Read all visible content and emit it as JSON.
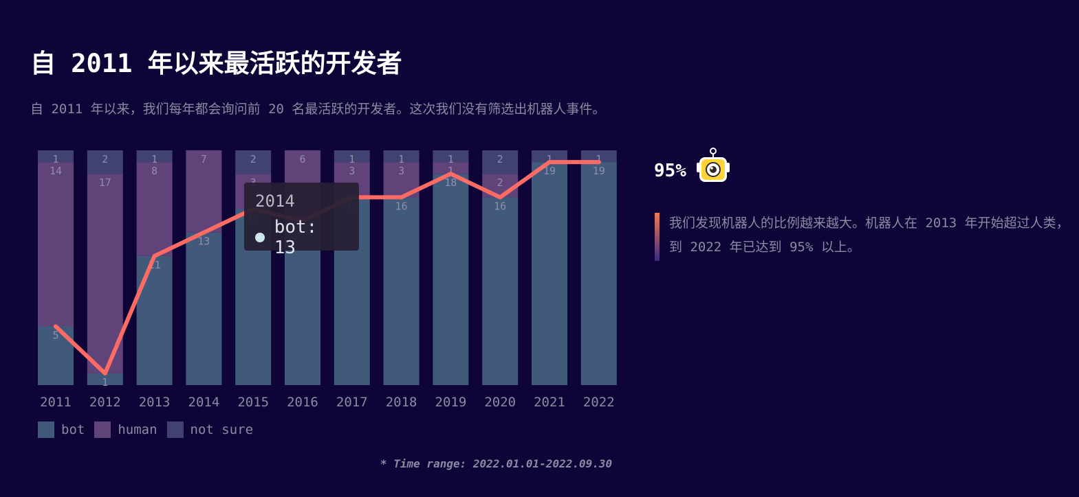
{
  "header": {
    "title": "自 2011 年以来最活跃的开发者",
    "subtitle": "自 2011 年以来，我们每年都会询问前 20 名最活跃的开发者。这次我们没有筛选出机器人事件。"
  },
  "colors": {
    "background": "#0e0437",
    "bot": "#415a7b",
    "human": "#5f4379",
    "not_sure": "#414172",
    "line": "#fd6b65",
    "label": "#8a8aa3"
  },
  "chart_data": {
    "type": "bar",
    "stacked": true,
    "categories": [
      "2011",
      "2012",
      "2013",
      "2014",
      "2015",
      "2016",
      "2017",
      "2018",
      "2019",
      "2020",
      "2021",
      "2022"
    ],
    "series": [
      {
        "name": "bot",
        "values": [
          5,
          1,
          11,
          13,
          15,
          14,
          16,
          16,
          18,
          16,
          19,
          19
        ]
      },
      {
        "name": "human",
        "values": [
          14,
          17,
          8,
          7,
          3,
          6,
          3,
          3,
          1,
          2,
          0,
          0
        ]
      },
      {
        "name": "not sure",
        "values": [
          1,
          2,
          1,
          0,
          2,
          0,
          1,
          1,
          1,
          2,
          1,
          1
        ]
      }
    ],
    "line_series": {
      "name": "bot",
      "values": [
        5,
        1,
        11,
        13,
        15,
        14,
        16,
        16,
        18,
        16,
        19,
        19
      ]
    },
    "ylim": [
      0,
      20
    ],
    "grid": false,
    "legend_position": "bottom-left"
  },
  "legend": [
    {
      "label": "bot"
    },
    {
      "label": "human"
    },
    {
      "label": "not sure"
    }
  ],
  "tooltip": {
    "year": "2014",
    "series_label": "bot: 13"
  },
  "insight": {
    "percentage": "95%",
    "icon": "robot-icon",
    "text": "我们发现机器人的比例越来越大。机器人在 2013 年开始超过人类，到 2022 年已达到 95% 以上。"
  },
  "footnote": "* Time range: 2022.01.01-2022.09.30"
}
